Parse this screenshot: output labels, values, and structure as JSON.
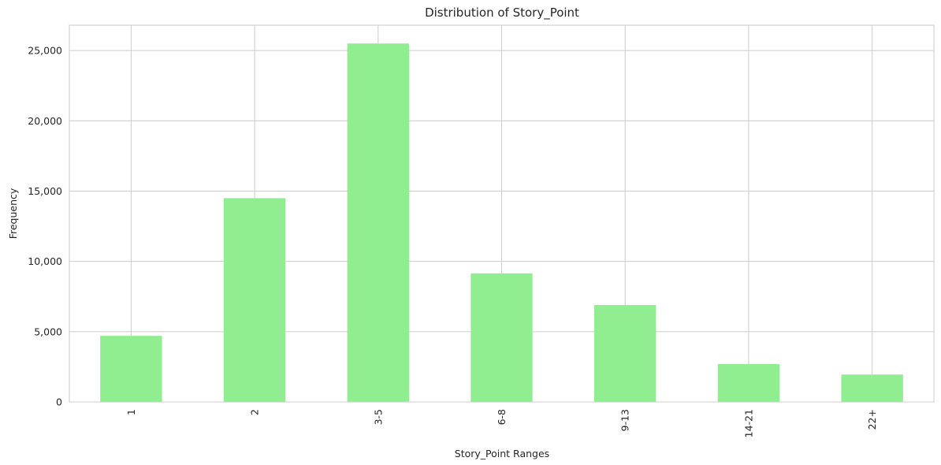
{
  "chart_data": {
    "type": "bar",
    "title": "Distribution of Story_Point",
    "xlabel": "Story_Point Ranges",
    "ylabel": "Frequency",
    "categories": [
      "1",
      "2",
      "3-5",
      "6-8",
      "9-13",
      "14-21",
      "22+"
    ],
    "values": [
      4700,
      14500,
      25500,
      9150,
      6900,
      2700,
      1950
    ],
    "ylim": [
      0,
      26800
    ],
    "yticks": [
      0,
      5000,
      10000,
      15000,
      20000,
      25000
    ],
    "ytick_labels": [
      "0",
      "5,000",
      "10,000",
      "15,000",
      "20,000",
      "25,000"
    ],
    "grid": true,
    "bar_color": "#90ee90"
  }
}
